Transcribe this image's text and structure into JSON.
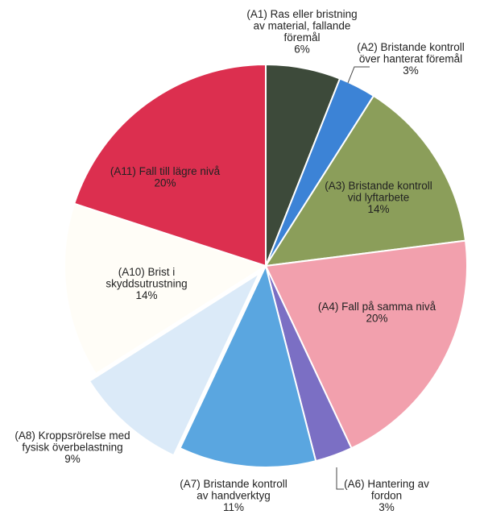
{
  "chart_data": {
    "type": "pie",
    "title": "",
    "start_angle_deg": 0,
    "direction": "clockwise",
    "slices": [
      {
        "label_lines": [
          "(A1) Ras eller bristning",
          "av material, fallande",
          "föremål"
        ],
        "pct_label": "6%",
        "value": 6,
        "color": "#3d4a3a"
      },
      {
        "label_lines": [
          "(A2) Bristande kontroll",
          "över hanterat föremål"
        ],
        "pct_label": "3%",
        "value": 3,
        "color": "#3c83d6"
      },
      {
        "label_lines": [
          "(A3) Bristande kontroll",
          "vid lyftarbete"
        ],
        "pct_label": "14%",
        "value": 14,
        "color": "#8b9e5a"
      },
      {
        "label_lines": [
          "(A4) Fall på samma nivå"
        ],
        "pct_label": "20%",
        "value": 20,
        "color": "#f2a0ad"
      },
      {
        "label_lines": [
          "(A6) Hantering av",
          "fordon"
        ],
        "pct_label": "3%",
        "value": 3,
        "color": "#7b6fc4"
      },
      {
        "label_lines": [
          "(A7) Bristande kontroll",
          "av handverktyg"
        ],
        "pct_label": "11%",
        "value": 11,
        "color": "#5aa6e0"
      },
      {
        "label_lines": [
          "(A8) Kroppsrörelse med",
          "fysisk överbelastning"
        ],
        "pct_label": "9%",
        "value": 9,
        "color": "#dbeaf8",
        "exploded": true
      },
      {
        "label_lines": [
          "(A10) Brist i",
          "skyddsutrustning"
        ],
        "pct_label": "14%",
        "value": 14,
        "color": "#fffdf7"
      },
      {
        "label_lines": [
          "(A11) Fall till lägre nivå"
        ],
        "pct_label": "20%",
        "value": 20,
        "color": "#dc2f4f"
      }
    ]
  }
}
